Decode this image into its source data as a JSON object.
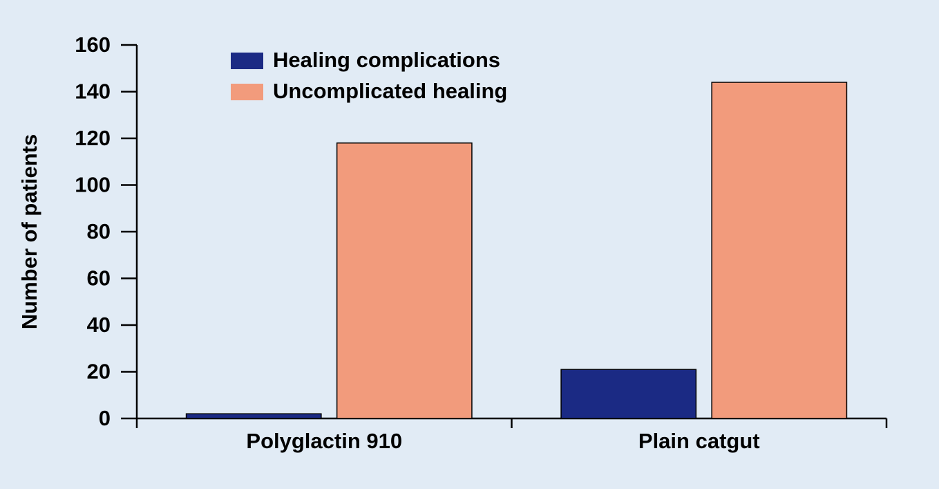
{
  "chart_data": {
    "type": "bar",
    "y_label": "Number of patients",
    "categories": [
      "Polyglactin 910",
      "Plain catgut"
    ],
    "series": [
      {
        "name": "Healing complications",
        "color": "#1b2a84",
        "values": [
          2,
          21
        ]
      },
      {
        "name": "Uncomplicated healing",
        "color": "#f29b7c",
        "values": [
          118,
          144
        ]
      }
    ],
    "ylim": [
      0,
      160
    ],
    "yticks": [
      0,
      20,
      40,
      60,
      80,
      100,
      120,
      140,
      160
    ]
  }
}
